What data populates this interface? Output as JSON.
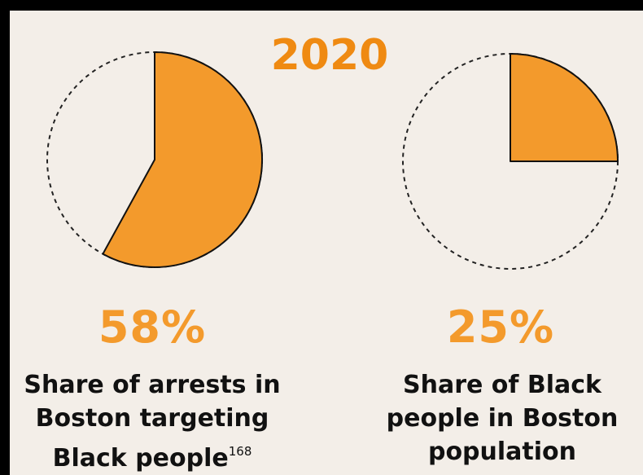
{
  "title": "2020",
  "colors": {
    "background": "#f3eee8",
    "accent": "#f39a2c",
    "year": "#ef8a12",
    "outline": "#222222"
  },
  "chart_data": [
    {
      "type": "pie",
      "title": "",
      "value_label": "58%",
      "slices": [
        {
          "label": "Share of arrests in Boston targeting Black people",
          "value": 58
        }
      ],
      "caption_lines": [
        "Share of arrests in",
        "Boston targeting",
        "Black people"
      ],
      "footnote": "168"
    },
    {
      "type": "pie",
      "title": "",
      "value_label": "25%",
      "slices": [
        {
          "label": "Share of Black people in Boston population",
          "value": 25
        }
      ],
      "caption_lines": [
        "Share of Black",
        "people in Boston",
        "population"
      ],
      "footnote": ""
    }
  ]
}
